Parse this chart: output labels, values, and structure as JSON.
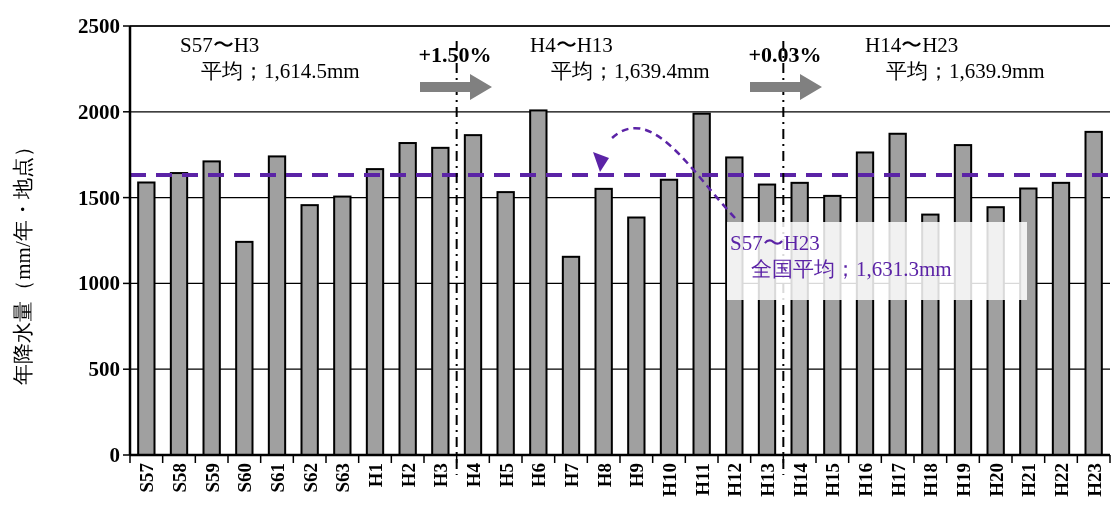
{
  "chart_data": {
    "type": "bar",
    "ylabel": "年降水量（mm/年・地点）",
    "categories": [
      "S57",
      "S58",
      "S59",
      "S60",
      "S61",
      "S62",
      "S63",
      "H1",
      "H2",
      "H3",
      "H4",
      "H5",
      "H6",
      "H7",
      "H8",
      "H9",
      "H10",
      "H11",
      "H12",
      "H13",
      "H14",
      "H15",
      "H16",
      "H17",
      "H18",
      "H19",
      "H20",
      "H21",
      "H22",
      "H23"
    ],
    "values": [
      1588,
      1643,
      1711,
      1242,
      1740,
      1456,
      1506,
      1666,
      1818,
      1790,
      1864,
      1532,
      2008,
      1155,
      1551,
      1384,
      1604,
      1989,
      1734,
      1576,
      1586,
      1510,
      1763,
      1872,
      1401,
      1806,
      1444,
      1553,
      1586,
      1883
    ],
    "color": "#a0a0a0",
    "ylim": [
      0,
      2500
    ],
    "yticks": [
      0,
      500,
      1000,
      1500,
      2000,
      2500
    ],
    "grid": "y",
    "ref_lines": [
      {
        "axis": "y",
        "value": 1631.3,
        "label": "S57〜H23\n　全国平均；1,631.3mm",
        "color": "#5b23a6",
        "line_style": "dashed"
      }
    ],
    "annotations": [
      "S57〜H3\n　平均；1,614.5mm",
      "+1.50%",
      "H4〜H13\n　平均；1,639.4mm",
      "+0.03%",
      "H14〜H23\n　平均；1,639.9mm"
    ]
  }
}
